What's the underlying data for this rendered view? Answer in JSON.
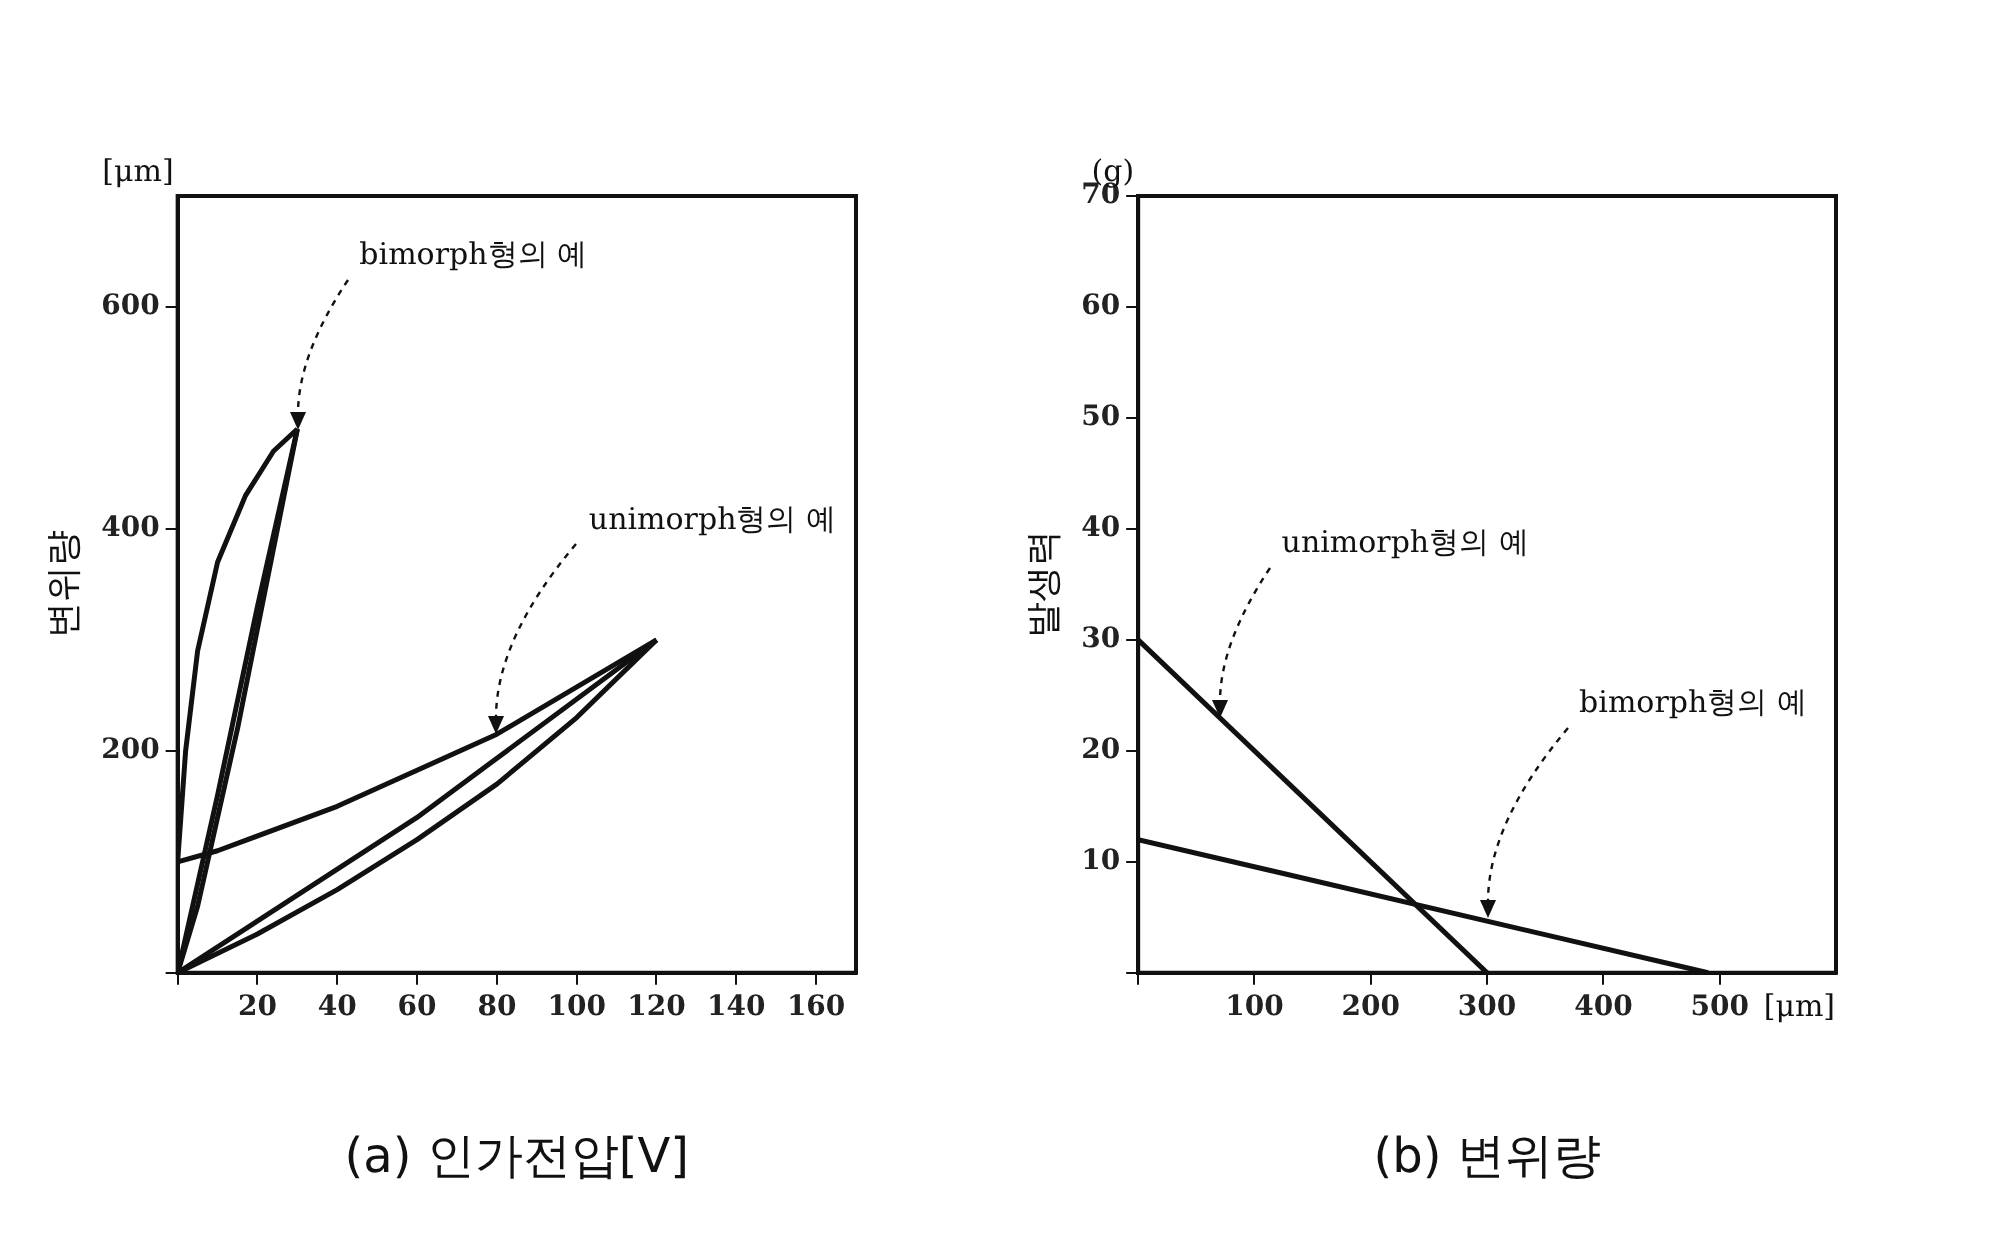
{
  "chart_data": [
    {
      "type": "line",
      "xlabel": "(a) 인가전압[V]",
      "ylabel": "변위량",
      "xlim": [
        0,
        170
      ],
      "ylim": [
        0,
        700
      ],
      "xticks": [
        {
          "value": 0,
          "label": null
        },
        20,
        40,
        60,
        80,
        100,
        120,
        140,
        160
      ],
      "yticks": [
        {
          "value": 0,
          "label": null
        },
        200,
        400,
        600
      ],
      "grid": false,
      "legend": false,
      "marker": "none",
      "line_style": "solid",
      "series": [
        {
          "color": "#111111",
          "x": [
            0,
            2,
            5,
            10,
            17,
            24,
            30
          ],
          "values": [
            100,
            200,
            290,
            370,
            430,
            470,
            490
          ]
        },
        {
          "color": "#111111",
          "x": [
            0,
            5,
            10,
            15,
            20,
            25,
            30
          ],
          "values": [
            0,
            60,
            140,
            220,
            310,
            400,
            490
          ]
        },
        {
          "color": "#111111",
          "x": [
            0,
            10,
            20,
            30
          ],
          "values": [
            0,
            160,
            330,
            490
          ]
        },
        {
          "color": "#111111",
          "x": [
            0,
            10,
            40,
            80,
            120
          ],
          "values": [
            100,
            110,
            150,
            215,
            300
          ]
        },
        {
          "color": "#111111",
          "x": [
            0,
            20,
            40,
            60,
            80,
            100,
            120
          ],
          "values": [
            0,
            35,
            75,
            120,
            170,
            230,
            300
          ]
        },
        {
          "color": "#111111",
          "x": [
            0,
            60,
            120
          ],
          "values": [
            0,
            140,
            300
          ]
        }
      ],
      "annotations": [
        "[μm]",
        {
          "text": "bimorph형의 예",
          "x": 30,
          "y": 490
        },
        {
          "text": "unimorph형의 예",
          "x": 80,
          "y": 215
        }
      ]
    },
    {
      "type": "line",
      "xlabel": "(b) 변위량",
      "ylabel": "발생력",
      "xlim": [
        0,
        600
      ],
      "ylim": [
        0,
        70
      ],
      "xticks": [
        {
          "value": 0,
          "label": null
        },
        100,
        200,
        300,
        400,
        500
      ],
      "yticks": [
        {
          "value": 0,
          "label": null
        },
        10,
        20,
        30,
        40,
        50,
        60,
        70
      ],
      "grid": false,
      "legend": false,
      "marker": "none",
      "line_style": "solid",
      "series": [
        {
          "color": "#111111",
          "x": [
            0,
            300
          ],
          "values": [
            30,
            0
          ]
        },
        {
          "color": "#111111",
          "x": [
            0,
            490
          ],
          "values": [
            12,
            0
          ]
        }
      ],
      "annotations": [
        "(g)",
        "[μm]",
        {
          "text": "unimorph형의 예",
          "x": 70,
          "y": 23
        },
        {
          "text": "bimorph형의 예",
          "x": 300,
          "y": 5
        }
      ]
    }
  ]
}
